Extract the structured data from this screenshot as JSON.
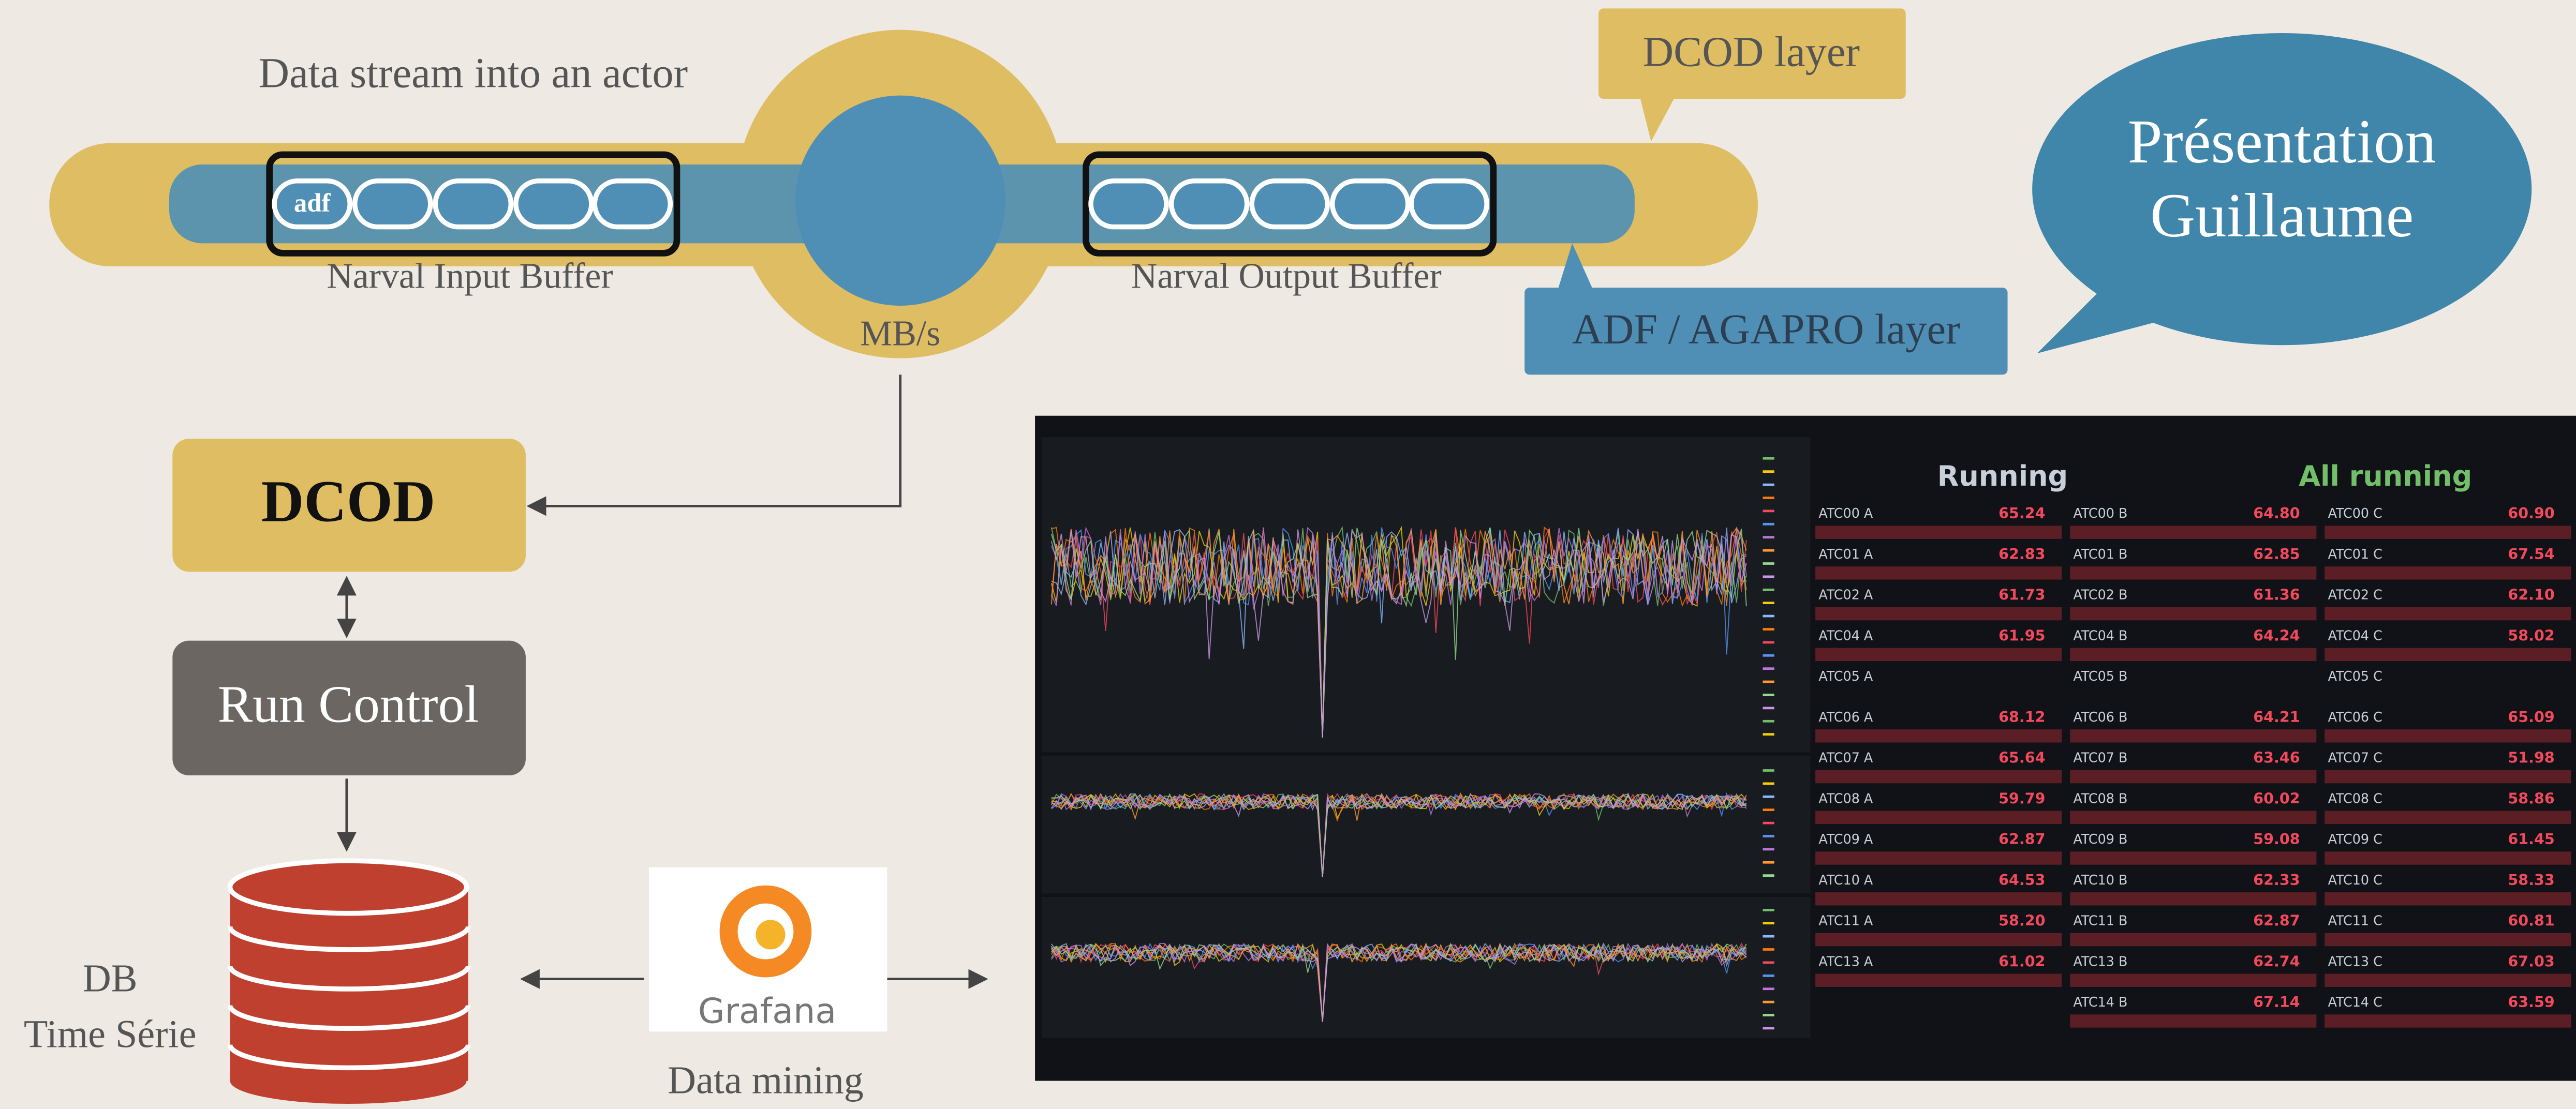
{
  "diagram": {
    "stream_label": "Data stream into an actor",
    "buffer_tag": "adf",
    "input_buffer_label": "Narval Input Buffer",
    "output_buffer_label": "Narval Output Buffer",
    "throughput_label": "MB/s",
    "dcod_layer": "DCOD layer",
    "adf_layer": "ADF / AGAPRO layer",
    "speech_lines": [
      "Présentation",
      "Guillaume"
    ],
    "dcod_box": "DCOD",
    "run_control": "Run Control",
    "db_lines": [
      "DB",
      "Time Série"
    ],
    "grafana_logo": "Grafana",
    "data_mining": "Data mining"
  },
  "dashboard": {
    "status_ab": "Running",
    "status_c": "All running",
    "columns": [
      {
        "rows": [
          {
            "label": "ATC00 A",
            "value": "65.24"
          },
          {
            "label": "ATC01 A",
            "value": "62.83"
          },
          {
            "label": "ATC02 A",
            "value": "61.73"
          },
          {
            "label": "ATC04 A",
            "value": "61.95"
          },
          {
            "label": "ATC05 A"
          },
          {
            "label": "ATC06 A",
            "value": "68.12"
          },
          {
            "label": "ATC07 A",
            "value": "65.64"
          },
          {
            "label": "ATC08 A",
            "value": "59.79"
          },
          {
            "label": "ATC09 A",
            "value": "62.87"
          },
          {
            "label": "ATC10 A",
            "value": "64.53"
          },
          {
            "label": "ATC11 A",
            "value": "58.20"
          },
          {
            "label": "ATC13 A",
            "value": "61.02"
          }
        ]
      },
      {
        "rows": [
          {
            "label": "ATC00 B",
            "value": "64.80"
          },
          {
            "label": "ATC01 B",
            "value": "62.85"
          },
          {
            "label": "ATC02 B",
            "value": "61.36"
          },
          {
            "label": "ATC04 B",
            "value": "64.24"
          },
          {
            "label": "ATC05 B"
          },
          {
            "label": "ATC06 B",
            "value": "64.21"
          },
          {
            "label": "ATC07 B",
            "value": "63.46"
          },
          {
            "label": "ATC08 B",
            "value": "60.02"
          },
          {
            "label": "ATC09 B",
            "value": "59.08"
          },
          {
            "label": "ATC10 B",
            "value": "62.33"
          },
          {
            "label": "ATC11 B",
            "value": "62.87"
          },
          {
            "label": "ATC13 B",
            "value": "62.74"
          },
          {
            "label": "ATC14 B",
            "value": "67.14"
          }
        ]
      },
      {
        "rows": [
          {
            "label": "ATC00 C",
            "value": "60.90"
          },
          {
            "label": "ATC01 C",
            "value": "67.54"
          },
          {
            "label": "ATC02 C",
            "value": "62.10"
          },
          {
            "label": "ATC04 C",
            "value": "58.02"
          },
          {
            "label": "ATC05 C"
          },
          {
            "label": "ATC06 C",
            "value": "65.09"
          },
          {
            "label": "ATC07 C",
            "value": "51.98"
          },
          {
            "label": "ATC08 C",
            "value": "58.86"
          },
          {
            "label": "ATC09 C",
            "value": "61.45"
          },
          {
            "label": "ATC10 C",
            "value": "58.33"
          },
          {
            "label": "ATC11 C",
            "value": "60.81"
          },
          {
            "label": "ATC13 C",
            "value": "67.03"
          },
          {
            "label": "ATC14 C",
            "value": "63.59"
          }
        ]
      }
    ]
  }
}
